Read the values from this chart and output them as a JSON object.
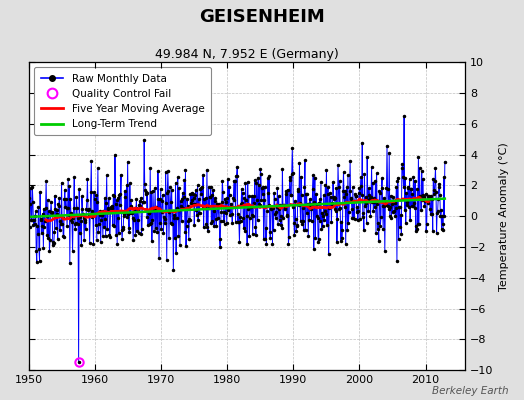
{
  "title": "GEISENHEIM",
  "subtitle": "49.984 N, 7.952 E (Germany)",
  "ylabel": "Temperature Anomaly (°C)",
  "credit": "Berkeley Earth",
  "xlim": [
    1950,
    2016
  ],
  "ylim": [
    -10,
    10
  ],
  "yticks": [
    -10,
    -8,
    -6,
    -4,
    -2,
    0,
    2,
    4,
    6,
    8,
    10
  ],
  "xticks": [
    1950,
    1960,
    1970,
    1980,
    1990,
    2000,
    2010
  ],
  "raw_color": "#0000FF",
  "ma_color": "#FF0000",
  "trend_color": "#00CC00",
  "qc_color": "#FF00FF",
  "plot_bg": "#FFFFFF",
  "fig_bg": "#E0E0E0",
  "qc_fail_year": 1957.5,
  "qc_fail_value": -9.5,
  "seed": 42,
  "n_months": 756,
  "start_year": 1950
}
